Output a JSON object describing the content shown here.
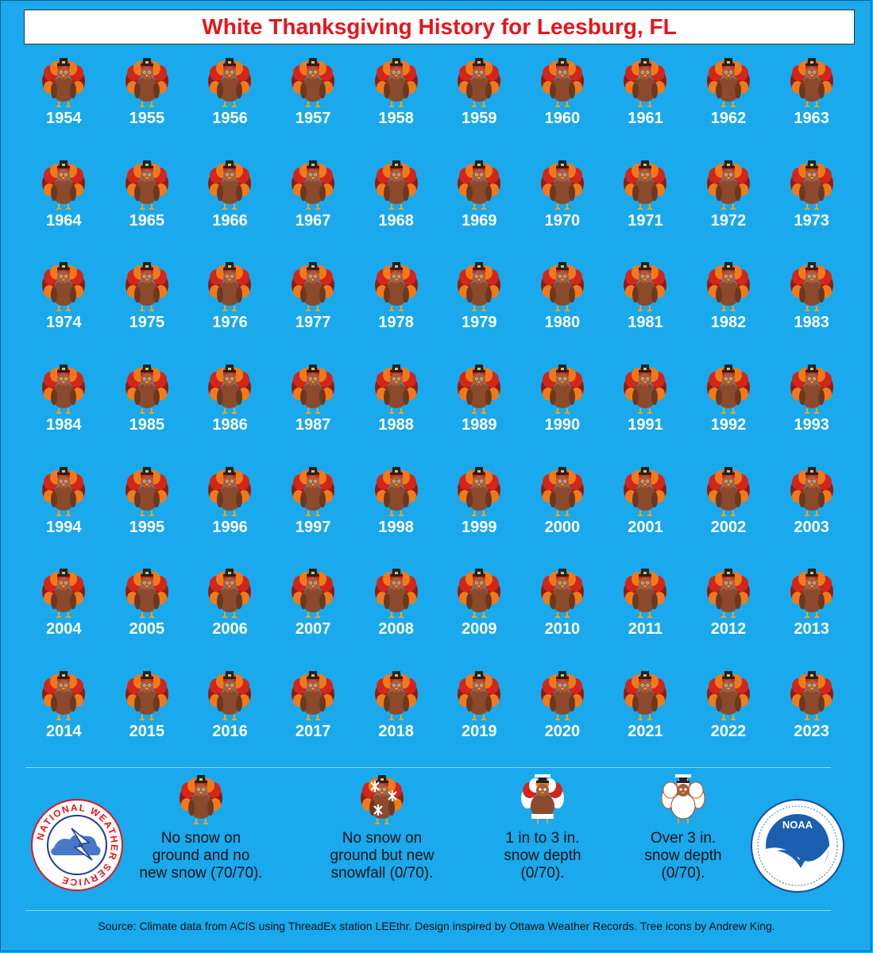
{
  "title": "White Thanksgiving History for Leesburg, FL",
  "years": [
    "1954",
    "1955",
    "1956",
    "1957",
    "1958",
    "1959",
    "1960",
    "1961",
    "1962",
    "1963",
    "1964",
    "1965",
    "1966",
    "1967",
    "1968",
    "1969",
    "1970",
    "1971",
    "1972",
    "1973",
    "1974",
    "1975",
    "1976",
    "1977",
    "1978",
    "1979",
    "1980",
    "1981",
    "1982",
    "1983",
    "1984",
    "1985",
    "1986",
    "1987",
    "1988",
    "1989",
    "1990",
    "1991",
    "1992",
    "1993",
    "1994",
    "1995",
    "1996",
    "1997",
    "1998",
    "1999",
    "2000",
    "2001",
    "2002",
    "2003",
    "2004",
    "2005",
    "2006",
    "2007",
    "2008",
    "2009",
    "2010",
    "2011",
    "2012",
    "2013",
    "2014",
    "2015",
    "2016",
    "2017",
    "2018",
    "2019",
    "2020",
    "2021",
    "2022",
    "2023"
  ],
  "icon": "turkey-no-snow-icon",
  "legend": [
    {
      "icon": "turkey-no-snow-icon",
      "text": "No snow on\nground and no\nnew snow (70/70)."
    },
    {
      "icon": "turkey-new-snowfall-icon",
      "text": "No snow on\nground but new\nsnowfall (0/70)."
    },
    {
      "icon": "turkey-light-snow-icon",
      "text": "1 in to 3 in.\nsnow depth\n(0/70)."
    },
    {
      "icon": "turkey-deep-snow-icon",
      "text": "Over 3 in.\nsnow depth\n(0/70)."
    }
  ],
  "nws_logo_text": "NATIONAL WEATHER SERVICE",
  "noaa_logo_text": "NOAA",
  "source": "Source: Climate data from ACIS using ThreadEx station LEEthr. Design inspired by Ottawa Weather Records. Tree icons by Andrew King.",
  "colors": {
    "background": "#19a9ec",
    "title_red": "#e8141b",
    "feather_dark": "#8e1d14",
    "feather_red": "#d3261b",
    "feather_orange": "#f07a1a",
    "body_brown": "#8b4a2b"
  }
}
